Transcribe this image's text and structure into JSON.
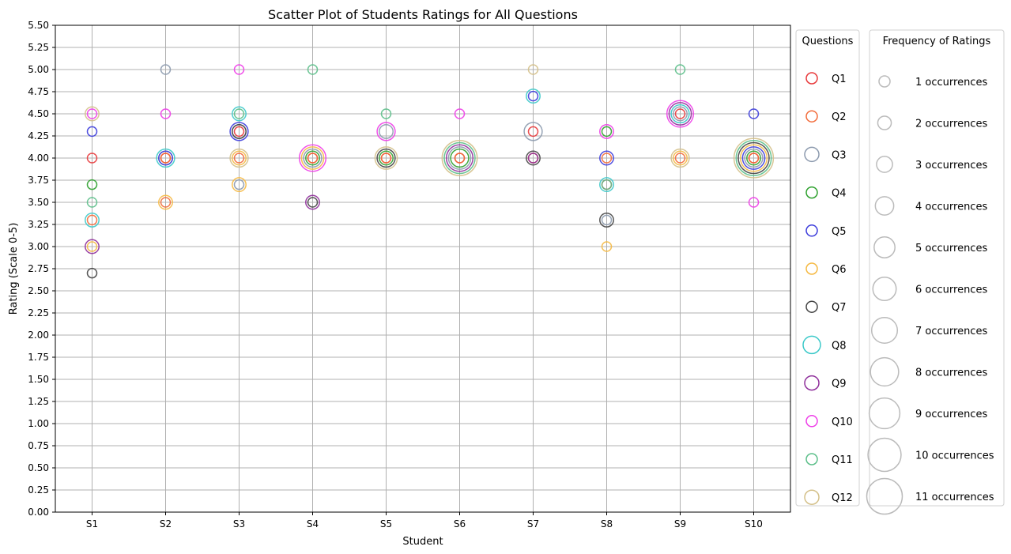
{
  "chart_data": {
    "type": "scatter",
    "title": "Scatter Plot of Students Ratings for All Questions",
    "xlabel": "Student",
    "ylabel": "Rating (Scale 0-5)",
    "categories": [
      "S1",
      "S2",
      "S3",
      "S4",
      "S5",
      "S6",
      "S7",
      "S8",
      "S9",
      "S10"
    ],
    "ylim": [
      0,
      5.5
    ],
    "yticks": [
      "0.00",
      "0.25",
      "0.50",
      "0.75",
      "1.00",
      "1.25",
      "1.50",
      "1.75",
      "2.00",
      "2.25",
      "2.50",
      "2.75",
      "3.00",
      "3.25",
      "3.50",
      "3.75",
      "4.00",
      "4.25",
      "4.50",
      "4.75",
      "5.00",
      "5.25",
      "5.50"
    ],
    "grid": true,
    "markers": "hollow circles; marker size grows with frequency of the rating",
    "series": [
      {
        "name": "Q1",
        "color": "#e8393b",
        "points": [
          [
            "S1",
            4.0,
            1
          ],
          [
            "S2",
            4.0,
            1
          ],
          [
            "S3",
            4.3,
            1
          ],
          [
            "S4",
            4.0,
            1
          ],
          [
            "S5",
            4.0,
            1
          ],
          [
            "S6",
            4.0,
            1
          ],
          [
            "S7",
            4.3,
            1
          ],
          [
            "S8",
            3.7,
            1
          ],
          [
            "S9",
            4.5,
            1
          ],
          [
            "S10",
            4.0,
            1
          ]
        ]
      },
      {
        "name": "Q2",
        "color": "#f26b3a",
        "points": [
          [
            "S1",
            3.3,
            1
          ],
          [
            "S2",
            4.0,
            1
          ],
          [
            "S2",
            3.5,
            1
          ],
          [
            "S3",
            4.0,
            1
          ],
          [
            "S4",
            4.0,
            1
          ],
          [
            "S5",
            4.0,
            1
          ],
          [
            "S6",
            4.0,
            1
          ],
          [
            "S7",
            4.0,
            1
          ],
          [
            "S8",
            4.0,
            1
          ],
          [
            "S9",
            4.0,
            1
          ],
          [
            "S10",
            4.0,
            1
          ]
        ]
      },
      {
        "name": "Q3",
        "color": "#8c9aae",
        "points": [
          [
            "S2",
            5.0,
            1
          ],
          [
            "S2",
            4.0,
            2
          ],
          [
            "S3",
            3.7,
            1
          ],
          [
            "S3",
            4.3,
            2
          ],
          [
            "S4",
            4.0,
            3
          ],
          [
            "S5",
            4.3,
            2
          ],
          [
            "S6",
            4.0,
            4
          ],
          [
            "S7",
            4.3,
            3
          ],
          [
            "S8",
            3.3,
            1
          ],
          [
            "S9",
            4.5,
            2
          ],
          [
            "S10",
            4.0,
            3
          ]
        ]
      },
      {
        "name": "Q4",
        "color": "#2ca02c",
        "points": [
          [
            "S1",
            3.7,
            1
          ],
          [
            "S4",
            4.0,
            2
          ],
          [
            "S5",
            4.0,
            2
          ],
          [
            "S6",
            4.0,
            3
          ],
          [
            "S8",
            4.3,
            1
          ],
          [
            "S10",
            4.0,
            2
          ]
        ]
      },
      {
        "name": "Q5",
        "color": "#3b3bdb",
        "points": [
          [
            "S1",
            4.3,
            1
          ],
          [
            "S2",
            4.0,
            2
          ],
          [
            "S3",
            4.3,
            3
          ],
          [
            "S7",
            4.7,
            1
          ],
          [
            "S8",
            4.0,
            2
          ],
          [
            "S10",
            4.5,
            1
          ],
          [
            "S10",
            4.0,
            4
          ]
        ]
      },
      {
        "name": "Q6",
        "color": "#f5b942",
        "points": [
          [
            "S1",
            3.0,
            1
          ],
          [
            "S2",
            3.5,
            2
          ],
          [
            "S3",
            3.7,
            2
          ],
          [
            "S3",
            4.0,
            2
          ],
          [
            "S4",
            4.0,
            4
          ],
          [
            "S8",
            3.0,
            1
          ],
          [
            "S9",
            4.0,
            2
          ],
          [
            "S10",
            4.0,
            5
          ]
        ]
      },
      {
        "name": "Q7",
        "color": "#444444",
        "points": [
          [
            "S1",
            2.7,
            1
          ],
          [
            "S3",
            4.3,
            2
          ],
          [
            "S4",
            3.5,
            1
          ],
          [
            "S5",
            4.0,
            3
          ],
          [
            "S7",
            4.0,
            2
          ],
          [
            "S8",
            3.3,
            2
          ],
          [
            "S10",
            4.0,
            6
          ]
        ]
      },
      {
        "name": "Q8",
        "color": "#3cc9c9",
        "points": [
          [
            "S1",
            3.3,
            2
          ],
          [
            "S2",
            4.0,
            3
          ],
          [
            "S3",
            4.5,
            2
          ],
          [
            "S7",
            4.7,
            2
          ],
          [
            "S8",
            3.7,
            2
          ],
          [
            "S9",
            4.5,
            3
          ]
        ]
      },
      {
        "name": "Q9",
        "color": "#8e2d9a",
        "points": [
          [
            "S1",
            3.0,
            2
          ],
          [
            "S4",
            3.5,
            2
          ],
          [
            "S6",
            4.0,
            5
          ],
          [
            "S7",
            4.0,
            1
          ],
          [
            "S9",
            4.5,
            4
          ]
        ]
      },
      {
        "name": "Q10",
        "color": "#ee3ee8",
        "points": [
          [
            "S1",
            4.5,
            1
          ],
          [
            "S2",
            4.5,
            1
          ],
          [
            "S3",
            5.0,
            1
          ],
          [
            "S4",
            4.0,
            5
          ],
          [
            "S5",
            4.3,
            3
          ],
          [
            "S6",
            4.5,
            1
          ],
          [
            "S8",
            4.3,
            2
          ],
          [
            "S9",
            4.5,
            5
          ],
          [
            "S10",
            3.5,
            1
          ]
        ]
      },
      {
        "name": "Q11",
        "color": "#5cbf8a",
        "points": [
          [
            "S1",
            3.5,
            1
          ],
          [
            "S3",
            4.5,
            1
          ],
          [
            "S4",
            5.0,
            1
          ],
          [
            "S5",
            4.5,
            1
          ],
          [
            "S6",
            4.0,
            6
          ],
          [
            "S8",
            3.7,
            1
          ],
          [
            "S9",
            5.0,
            1
          ],
          [
            "S10",
            4.0,
            7
          ]
        ]
      },
      {
        "name": "Q12",
        "color": "#d4c089",
        "points": [
          [
            "S1",
            4.5,
            2
          ],
          [
            "S3",
            4.0,
            3
          ],
          [
            "S5",
            4.0,
            4
          ],
          [
            "S6",
            4.0,
            7
          ],
          [
            "S7",
            5.0,
            1
          ],
          [
            "S9",
            4.0,
            3
          ],
          [
            "S10",
            4.0,
            8
          ]
        ]
      }
    ],
    "legends": [
      {
        "title": "Questions",
        "entries": [
          "Q1",
          "Q2",
          "Q3",
          "Q4",
          "Q5",
          "Q6",
          "Q7",
          "Q8",
          "Q9",
          "Q10",
          "Q11",
          "Q12"
        ]
      },
      {
        "title": "Frequency of Ratings",
        "entries": [
          "1 occurrences",
          "2 occurrences",
          "3 occurrences",
          "4 occurrences",
          "5 occurrences",
          "6 occurrences",
          "7 occurrences",
          "8 occurrences",
          "9 occurrences",
          "10 occurrences",
          "11 occurrences"
        ],
        "color": "#bbbbbb"
      }
    ]
  }
}
